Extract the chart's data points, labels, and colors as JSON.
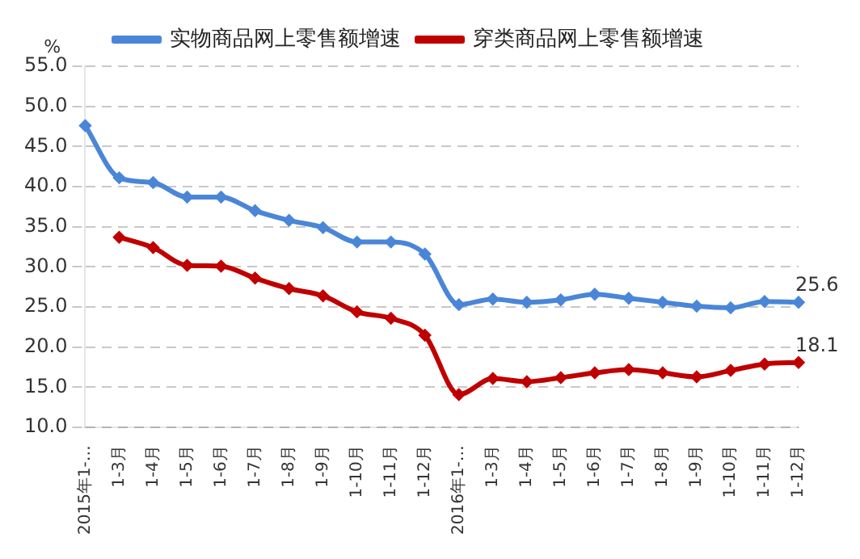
{
  "chart_data": {
    "type": "line",
    "ylabel": "%",
    "categories": [
      "2015年1-…",
      "1-3月",
      "1-4月",
      "1-5月",
      "1-6月",
      "1-7月",
      "1-8月",
      "1-9月",
      "1-10月",
      "1-11月",
      "1-12月",
      "2016年1-…",
      "1-3月",
      "1-4月",
      "1-5月",
      "1-6月",
      "1-7月",
      "1-8月",
      "1-9月",
      "1-10月",
      "1-11月",
      "1-12月"
    ],
    "series": [
      {
        "name": "实物商品网上零售额增速",
        "color": "#4a86d8",
        "values": [
          47.6,
          41.1,
          40.5,
          38.7,
          38.7,
          37.0,
          35.8,
          34.9,
          33.1,
          33.1,
          31.6,
          25.3,
          26.0,
          25.6,
          25.9,
          26.6,
          26.1,
          25.6,
          25.1,
          24.9,
          25.7,
          25.6
        ],
        "value_labels": [
          null,
          null,
          null,
          null,
          null,
          null,
          null,
          null,
          null,
          null,
          null,
          null,
          null,
          null,
          null,
          null,
          null,
          null,
          null,
          null,
          null,
          "25.6"
        ]
      },
      {
        "name": "穿类商品网上零售额增速",
        "color": "#c00000",
        "values": [
          null,
          33.7,
          32.4,
          30.2,
          30.1,
          28.6,
          27.3,
          26.4,
          24.4,
          23.6,
          21.5,
          14.1,
          16.1,
          15.7,
          16.2,
          16.8,
          17.2,
          16.8,
          16.3,
          17.1,
          17.9,
          18.1
        ],
        "value_labels": [
          null,
          null,
          null,
          null,
          null,
          null,
          null,
          null,
          null,
          null,
          null,
          null,
          null,
          null,
          null,
          null,
          null,
          null,
          null,
          null,
          null,
          "18.1"
        ]
      }
    ],
    "ylim": [
      10,
      55
    ],
    "yticks": [
      {
        "value": 10,
        "label": "10.0"
      },
      {
        "value": 15,
        "label": "15.0"
      },
      {
        "value": 20,
        "label": "20.0"
      },
      {
        "value": 25,
        "label": "25.0"
      },
      {
        "value": 30,
        "label": "30.0"
      },
      {
        "value": 35,
        "label": "35.0"
      },
      {
        "value": 40,
        "label": "40.0"
      },
      {
        "value": 45,
        "label": "45.0"
      },
      {
        "value": 50,
        "label": "50.0"
      },
      {
        "value": 55,
        "label": "55.0"
      }
    ],
    "grid": "y",
    "legend": "top",
    "marker": "diamond",
    "line_style": "solid"
  }
}
